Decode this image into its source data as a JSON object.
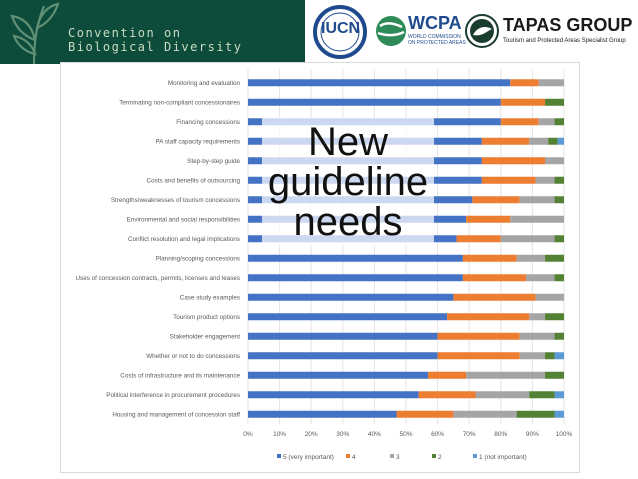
{
  "header": {
    "cbd_line1": "Convention on",
    "cbd_line2": "Biological Diversity",
    "iucn": "IUCN",
    "wcpa": "WCPA",
    "wcpa_sub1": "WORLD COMMISSION",
    "wcpa_sub2": "ON PROTECTED AREAS",
    "tapas": "TAPAS GROUP",
    "tapas_sub": "Tourism and Protected Areas Specialist Group"
  },
  "overlay": {
    "line1": "New",
    "line2": "guideline",
    "line3": "needs"
  },
  "colors": {
    "cbd_bg": "#0d4b3a",
    "series": [
      "#4472c4",
      "#ed7d31",
      "#a5a5a5",
      "#548235",
      "#5b9bd5"
    ]
  },
  "chart_data": {
    "type": "bar",
    "orientation": "horizontal",
    "stacked": "percent",
    "categories": [
      "Monitoring and evaluation",
      "Terminating non-compliant concessionaires",
      "Financing concessions",
      "PA staff capacity requirements",
      "Step-by-step guide",
      "Costs and benefits of outsourcing",
      "Strengths/weaknesses of tourism concessions",
      "Environmental and social responsibilities",
      "Conflict resolution and legal implications",
      "Planning/scoping concessions",
      "Uses of concession contracts, permits, licenses and leases",
      "Case study examples",
      "Tourism product options",
      "Stakeholder engagement",
      "Whether or not to do concessions",
      "Costs of infrastructure and its maintenance",
      "Political interference in procurement procedures",
      "Housing and management of concession staff"
    ],
    "series": [
      {
        "name": "5 (very important)",
        "values": [
          83,
          80,
          80,
          74,
          74,
          74,
          71,
          69,
          66,
          68,
          68,
          65,
          63,
          60,
          60,
          57,
          54,
          47
        ]
      },
      {
        "name": "4",
        "values": [
          9,
          14,
          12,
          15,
          20,
          17,
          15,
          14,
          14,
          17,
          20,
          26,
          26,
          26,
          26,
          12,
          18,
          18
        ]
      },
      {
        "name": "3",
        "values": [
          8,
          0,
          5,
          6,
          6,
          6,
          11,
          17,
          17,
          9,
          9,
          9,
          5,
          11,
          8,
          25,
          17,
          20
        ]
      },
      {
        "name": "2",
        "values": [
          0,
          6,
          3,
          3,
          0,
          3,
          3,
          0,
          3,
          6,
          3,
          0,
          6,
          3,
          3,
          6,
          8,
          12
        ]
      },
      {
        "name": "1 (not important)",
        "values": [
          0,
          0,
          0,
          2,
          0,
          0,
          0,
          0,
          0,
          0,
          0,
          0,
          0,
          0,
          3,
          0,
          3,
          3
        ]
      }
    ],
    "xlim": [
      0,
      100
    ],
    "xticks": [
      "0%",
      "10%",
      "20%",
      "30%",
      "40%",
      "50%",
      "60%",
      "70%",
      "80%",
      "90%",
      "100%"
    ],
    "legend_position": "bottom",
    "title": "",
    "xlabel": "",
    "ylabel": ""
  }
}
